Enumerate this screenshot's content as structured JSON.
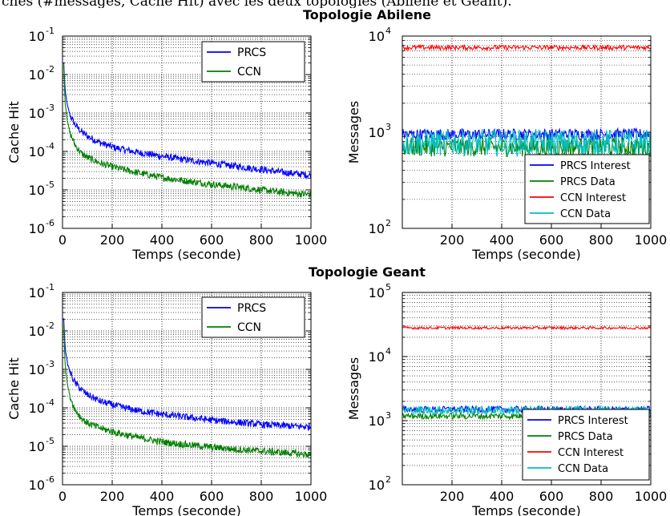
{
  "caption": "ches (#messages, Cache Hit) avec les deux topologies (Abilene et Geant).",
  "colors": {
    "blue": "#0000ff",
    "green": "#008000",
    "red": "#ff0000",
    "cyan": "#00bfbf"
  },
  "chart_data": [
    {
      "type": "line",
      "group_title": "Topologie Abilene",
      "xlabel": "Temps (seconde)",
      "ylabel": "Cache Hit",
      "scale_y": "log",
      "xlim": [
        0,
        1000
      ],
      "ylim": [
        1e-06,
        0.1
      ],
      "x_ticks": [
        "0",
        "200",
        "400",
        "600",
        "800",
        "1000"
      ],
      "y_ticks": [
        "-6",
        "-5",
        "-4",
        "-3",
        "-2",
        "-1"
      ],
      "grid": true,
      "legend_position": "top-right",
      "series": [
        {
          "name": "PRCS",
          "color": "#0000ff",
          "x": [
            5,
            10,
            20,
            30,
            50,
            75,
            100,
            150,
            200,
            300,
            400,
            500,
            600,
            700,
            800,
            900,
            1000
          ],
          "values": [
            0.02,
            0.004,
            0.0015,
            0.0009,
            0.0005,
            0.00033,
            0.00025,
            0.00017,
            0.00013,
            9.5e-05,
            7.5e-05,
            6e-05,
            5e-05,
            4.1e-05,
            3.4e-05,
            2.8e-05,
            2.4e-05
          ]
        },
        {
          "name": "CCN",
          "color": "#008000",
          "x": [
            5,
            10,
            20,
            30,
            50,
            75,
            100,
            150,
            200,
            300,
            400,
            500,
            600,
            700,
            800,
            900,
            1000
          ],
          "values": [
            0.018,
            0.002,
            0.0006,
            0.0003,
            0.00015,
            9e-05,
            7e-05,
            5e-05,
            4e-05,
            2.8e-05,
            2.1e-05,
            1.7e-05,
            1.4e-05,
            1.2e-05,
            1e-05,
            8.5e-06,
            7.5e-06
          ]
        }
      ]
    },
    {
      "type": "line",
      "xlabel": "Temps (seconde)",
      "ylabel": "Messages",
      "scale_y": "log",
      "xlim": [
        0,
        1000
      ],
      "ylim": [
        100,
        10000
      ],
      "x_ticks": [
        "200",
        "400",
        "600",
        "800",
        "1000"
      ],
      "y_ticks": [
        "2",
        "3",
        "4"
      ],
      "grid": true,
      "legend_position": "bottom-right",
      "series": [
        {
          "name": "PRCS Interest",
          "color": "#0000ff",
          "level": 950,
          "noise": 0.06
        },
        {
          "name": "PRCS Data",
          "color": "#008000",
          "level": 700,
          "noise": 0.1
        },
        {
          "name": "CCN Interest",
          "color": "#ff0000",
          "level": 7600,
          "noise": 0.025
        },
        {
          "name": "CCN Data",
          "color": "#00bfbf",
          "level": 780,
          "noise": 0.14
        }
      ]
    },
    {
      "type": "line",
      "group_title": "Topologie Geant",
      "xlabel": "Temps (seconde)",
      "ylabel": "Cache Hit",
      "scale_y": "log",
      "xlim": [
        0,
        1000
      ],
      "ylim": [
        1e-06,
        0.1
      ],
      "x_ticks": [
        "0",
        "200",
        "400",
        "600",
        "800",
        "1000"
      ],
      "y_ticks": [
        "-6",
        "-5",
        "-4",
        "-3",
        "-2",
        "-1"
      ],
      "grid": true,
      "legend_position": "top-right",
      "series": [
        {
          "name": "PRCS",
          "color": "#0000ff",
          "x": [
            5,
            10,
            20,
            30,
            50,
            75,
            100,
            150,
            200,
            300,
            400,
            500,
            600,
            700,
            800,
            900,
            1000
          ],
          "values": [
            0.02,
            0.004,
            0.0014,
            0.00085,
            0.00045,
            0.0003,
            0.00022,
            0.00015,
            0.00012,
            8.5e-05,
            6.8e-05,
            5.7e-05,
            4.8e-05,
            4.2e-05,
            3.7e-05,
            3.4e-05,
            3.2e-05
          ]
        },
        {
          "name": "CCN",
          "color": "#008000",
          "x": [
            5,
            10,
            20,
            30,
            50,
            75,
            100,
            150,
            200,
            300,
            400,
            500,
            600,
            700,
            800,
            900,
            1000
          ],
          "values": [
            0.015,
            0.0015,
            0.0004,
            0.0002,
            9e-05,
            5.5e-05,
            4e-05,
            3e-05,
            2.4e-05,
            1.7e-05,
            1.3e-05,
            1.1e-05,
            9.5e-06,
            8.3e-06,
            7.5e-06,
            6.8e-06,
            6e-06
          ]
        }
      ]
    },
    {
      "type": "line",
      "xlabel": "Temps (seconde)",
      "ylabel": "Messages",
      "scale_y": "log",
      "xlim": [
        0,
        1000
      ],
      "ylim": [
        100,
        100000
      ],
      "x_ticks": [
        "200",
        "400",
        "600",
        "800",
        "1000"
      ],
      "y_ticks": [
        "2",
        "3",
        "4",
        "5"
      ],
      "grid": true,
      "legend_position": "bottom-right",
      "series": [
        {
          "name": "PRCS Interest",
          "color": "#0000ff",
          "level": 1500,
          "noise": 0.05
        },
        {
          "name": "PRCS Data",
          "color": "#008000",
          "level": 1180,
          "noise": 0.05
        },
        {
          "name": "CCN Interest",
          "color": "#ff0000",
          "level": 28000,
          "noise": 0.02
        },
        {
          "name": "CCN Data",
          "color": "#00bfbf",
          "level": 1450,
          "noise": 0.07
        }
      ]
    }
  ]
}
